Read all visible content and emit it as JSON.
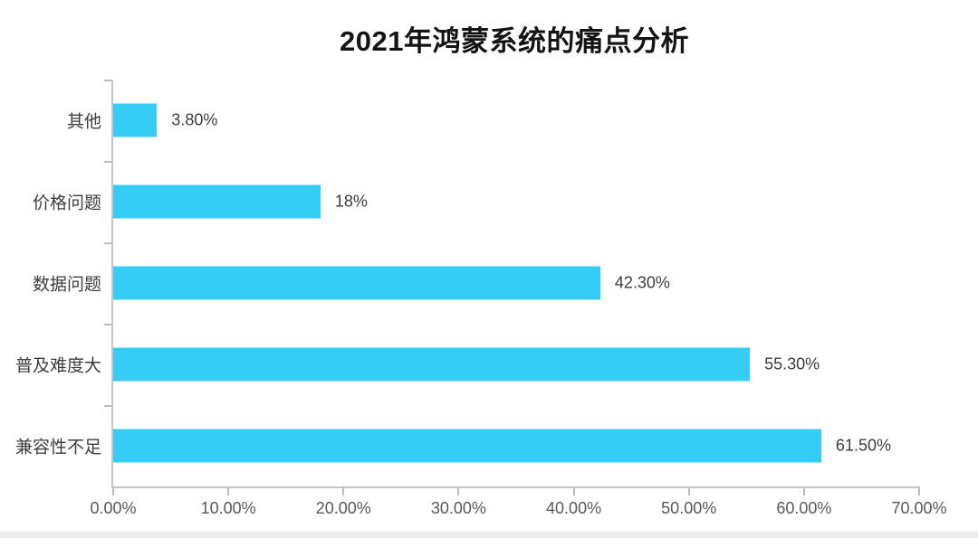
{
  "page": {
    "background_color": "#ffffff",
    "bottom_strip_color": "#e9ebed"
  },
  "chart_data": {
    "type": "bar",
    "orientation": "horizontal",
    "title": "2021年鸿蒙系统的痛点分析",
    "categories": [
      "其他",
      "价格问题",
      "数据问题",
      "普及难度大",
      "兼容性不足"
    ],
    "values": [
      3.8,
      18,
      42.3,
      55.3,
      61.5
    ],
    "value_labels": [
      "3.80%",
      "18%",
      "42.30%",
      "55.30%",
      "61.50%"
    ],
    "x_tick_labels": [
      "0.00%",
      "10.00%",
      "20.00%",
      "30.00%",
      "40.00%",
      "50.00%",
      "60.00%",
      "70.00%"
    ],
    "xlim": [
      0,
      70
    ],
    "xlabel": "",
    "ylabel": "",
    "grid": false,
    "legend": false,
    "bar_color": "#35cdf5",
    "axis_color": "#c6c6c6",
    "label_text_color": "#3d3d3d",
    "tick_label_color": "#595959",
    "title_color": "#141414"
  }
}
